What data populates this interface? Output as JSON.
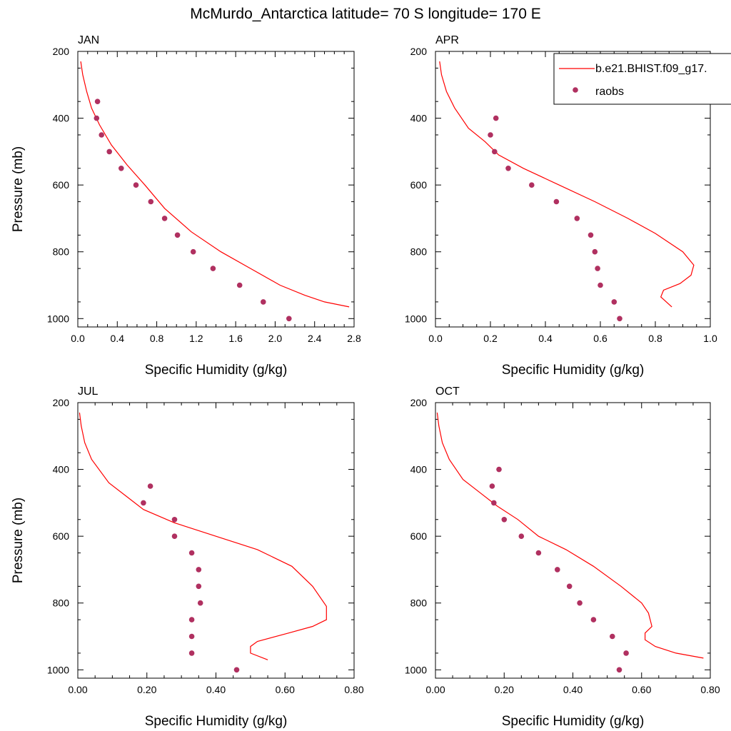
{
  "figure": {
    "title": "McMurdo_Antarctica  latitude= 70 S longitude= 170 E"
  },
  "legend": {
    "placement": "top-right of APR panel",
    "entries": [
      {
        "label": "b.e21.BHIST.f09_g17.",
        "kind": "line",
        "color": "#ff0000"
      },
      {
        "label": "raobs",
        "kind": "marker",
        "color": "#b03060"
      }
    ]
  },
  "colors": {
    "model_line": "#ff0000",
    "obs_marker": "#b03060",
    "axes": "#000000",
    "background": "#ffffff"
  },
  "chart_data": [
    {
      "type": "line",
      "title": "JAN",
      "xlabel": "Specific Humidity (g/kg)",
      "ylabel": "Pressure (mb)",
      "xlim": [
        0,
        2.8
      ],
      "ylim": [
        200,
        1025
      ],
      "y_inverted": true,
      "grid": false,
      "xticks": [
        0,
        0.4,
        0.8,
        1.2,
        1.6,
        2.0,
        2.4,
        2.8
      ],
      "xtick_labels": [
        "0.0",
        "0.4",
        "0.8",
        "1.2",
        "1.6",
        "2.0",
        "2.4",
        "2.8"
      ],
      "yticks": [
        200,
        400,
        600,
        800,
        1000
      ],
      "ytick_labels": [
        "200",
        "400",
        "600",
        "800",
        "1000"
      ],
      "series": [
        {
          "name": "b.e21.BHIST.f09_g17.",
          "kind": "line",
          "x": [
            0.03,
            0.05,
            0.09,
            0.14,
            0.22,
            0.34,
            0.5,
            0.68,
            0.88,
            1.15,
            1.45,
            1.75,
            2.05,
            2.3,
            2.5,
            2.75
          ],
          "y": [
            230,
            270,
            320,
            370,
            420,
            480,
            540,
            600,
            670,
            740,
            800,
            850,
            900,
            930,
            950,
            965
          ]
        },
        {
          "name": "raobs",
          "kind": "scatter",
          "x": [
            0.2,
            0.19,
            0.24,
            0.32,
            0.44,
            0.59,
            0.74,
            0.88,
            1.01,
            1.17,
            1.37,
            1.64,
            1.88,
            2.14
          ],
          "y": [
            350,
            400,
            450,
            500,
            550,
            600,
            650,
            700,
            750,
            800,
            850,
            900,
            950,
            1000
          ]
        }
      ]
    },
    {
      "type": "line",
      "title": "APR",
      "xlabel": "Specific Humidity (g/kg)",
      "ylabel": "",
      "xlim": [
        0,
        1.0
      ],
      "ylim": [
        200,
        1025
      ],
      "y_inverted": true,
      "grid": false,
      "xticks": [
        0,
        0.2,
        0.4,
        0.6,
        0.8,
        1.0
      ],
      "xtick_labels": [
        "0.0",
        "0.2",
        "0.4",
        "0.6",
        "0.8",
        "1.0"
      ],
      "yticks": [
        200,
        400,
        600,
        800,
        1000
      ],
      "ytick_labels": [
        "200",
        "400",
        "600",
        "800",
        "1000"
      ],
      "series": [
        {
          "name": "b.e21.BHIST.f09_g17.",
          "kind": "line",
          "x": [
            0.015,
            0.022,
            0.04,
            0.07,
            0.12,
            0.18,
            0.23,
            0.32,
            0.45,
            0.58,
            0.7,
            0.8,
            0.9,
            0.94,
            0.93,
            0.89,
            0.83,
            0.82,
            0.86
          ],
          "y": [
            230,
            270,
            320,
            370,
            430,
            470,
            510,
            550,
            600,
            650,
            700,
            745,
            800,
            840,
            870,
            895,
            915,
            935,
            965
          ]
        },
        {
          "name": "raobs",
          "kind": "scatter",
          "x": [
            0.22,
            0.2,
            0.215,
            0.265,
            0.35,
            0.44,
            0.515,
            0.565,
            0.58,
            0.59,
            0.6,
            0.65,
            0.67
          ],
          "y": [
            400,
            450,
            500,
            550,
            600,
            650,
            700,
            750,
            800,
            850,
            900,
            950,
            1000
          ]
        }
      ]
    },
    {
      "type": "line",
      "title": "JUL",
      "xlabel": "Specific Humidity (g/kg)",
      "ylabel": "Pressure (mb)",
      "xlim": [
        0,
        0.8
      ],
      "ylim": [
        200,
        1025
      ],
      "y_inverted": true,
      "grid": false,
      "xticks": [
        0,
        0.2,
        0.4,
        0.6,
        0.8
      ],
      "xtick_labels": [
        "0.00",
        "0.20",
        "0.40",
        "0.60",
        "0.80"
      ],
      "yticks": [
        200,
        400,
        600,
        800,
        1000
      ],
      "ytick_labels": [
        "200",
        "400",
        "600",
        "800",
        "1000"
      ],
      "series": [
        {
          "name": "b.e21.BHIST.f09_g17.",
          "kind": "line",
          "x": [
            0.005,
            0.01,
            0.02,
            0.04,
            0.09,
            0.14,
            0.19,
            0.28,
            0.4,
            0.52,
            0.62,
            0.68,
            0.72,
            0.72,
            0.68,
            0.61,
            0.52,
            0.5,
            0.5,
            0.55
          ],
          "y": [
            230,
            270,
            320,
            370,
            440,
            480,
            520,
            560,
            600,
            640,
            690,
            750,
            810,
            850,
            870,
            890,
            915,
            930,
            950,
            970
          ]
        },
        {
          "name": "raobs",
          "kind": "scatter",
          "x": [
            0.21,
            0.19,
            0.28,
            0.28,
            0.33,
            0.35,
            0.35,
            0.355,
            0.33,
            0.33,
            0.33,
            0.46
          ],
          "y": [
            450,
            500,
            550,
            600,
            650,
            700,
            750,
            800,
            850,
            900,
            950,
            1000
          ]
        }
      ]
    },
    {
      "type": "line",
      "title": "OCT",
      "xlabel": "Specific Humidity (g/kg)",
      "ylabel": "",
      "xlim": [
        0,
        0.8
      ],
      "ylim": [
        200,
        1025
      ],
      "y_inverted": true,
      "grid": false,
      "xticks": [
        0,
        0.2,
        0.4,
        0.6,
        0.8
      ],
      "xtick_labels": [
        "0.00",
        "0.20",
        "0.40",
        "0.60",
        "0.80"
      ],
      "yticks": [
        200,
        400,
        600,
        800,
        1000
      ],
      "ytick_labels": [
        "200",
        "400",
        "600",
        "800",
        "1000"
      ],
      "series": [
        {
          "name": "b.e21.BHIST.f09_g17.",
          "kind": "line",
          "x": [
            0.005,
            0.01,
            0.02,
            0.04,
            0.08,
            0.13,
            0.18,
            0.24,
            0.3,
            0.38,
            0.46,
            0.54,
            0.6,
            0.62,
            0.63,
            0.61,
            0.61,
            0.64,
            0.7,
            0.78
          ],
          "y": [
            230,
            270,
            320,
            370,
            430,
            470,
            510,
            550,
            600,
            640,
            690,
            750,
            800,
            830,
            870,
            890,
            910,
            930,
            950,
            965
          ]
        },
        {
          "name": "raobs",
          "kind": "scatter",
          "x": [
            0.185,
            0.165,
            0.17,
            0.2,
            0.25,
            0.3,
            0.355,
            0.39,
            0.42,
            0.46,
            0.515,
            0.555,
            0.535
          ],
          "y": [
            400,
            450,
            500,
            550,
            600,
            650,
            700,
            750,
            800,
            850,
            900,
            950,
            1000
          ]
        }
      ]
    }
  ]
}
